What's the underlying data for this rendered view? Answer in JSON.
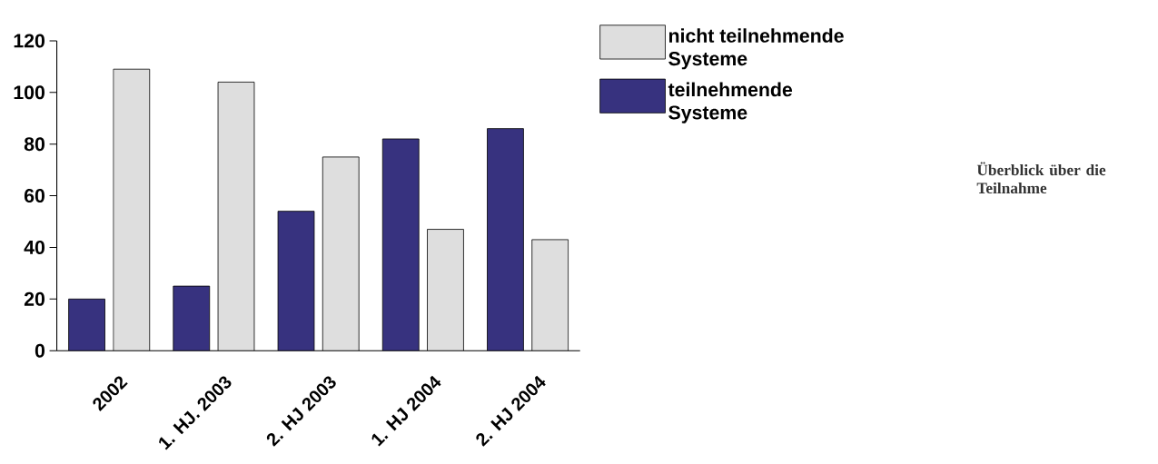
{
  "chart_data": {
    "type": "bar",
    "title": "Überblick über die Teilnahme",
    "categories": [
      "2002",
      "1. HJ. 2003",
      "2. HJ 2003",
      "1. HJ 2004",
      "2. HJ 2004"
    ],
    "series": [
      {
        "name": "teilnehmende Systeme",
        "color": "#37327f",
        "values": [
          20,
          25,
          54,
          82,
          86
        ]
      },
      {
        "name": "nicht teilnehmende Systeme",
        "color": "#dedede",
        "values": [
          109,
          104,
          75,
          47,
          43
        ]
      }
    ],
    "ylim": [
      0,
      120
    ],
    "yticks": [
      0,
      20,
      40,
      60,
      80,
      100,
      120
    ],
    "grid": false,
    "legend": "top right"
  }
}
